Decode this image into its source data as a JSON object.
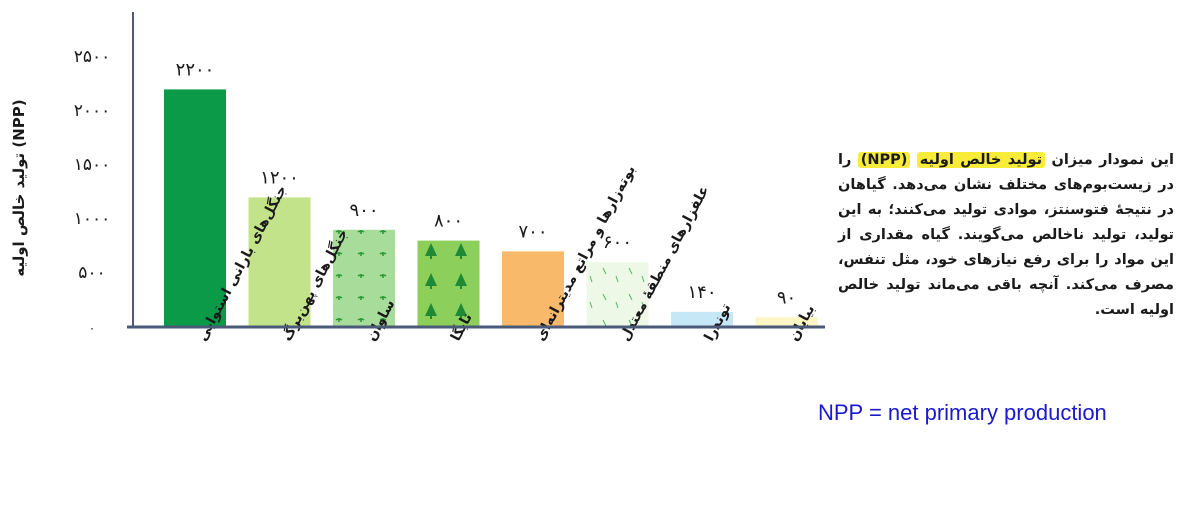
{
  "chart_data": {
    "type": "bar",
    "title": "",
    "ylabel": "تولید خالص اولیه (NPP)",
    "xlabel": "",
    "ylim": [
      0,
      2500
    ],
    "yticks": [
      "۰",
      "۵۰۰",
      "۱۰۰۰",
      "۱۵۰۰",
      "۲۰۰۰",
      "۲۵۰۰"
    ],
    "ytick_values": [
      0,
      500,
      1000,
      1500,
      2000,
      2500
    ],
    "categories": [
      "جنگل‌های بارانی استوایی",
      "جنگل‌های پهن‌برگ",
      "ساوان",
      "تایگا",
      "بوته‌زارها و مراتع مدیترانه‌ای",
      "علفزارهای منطقهٔ معتدل",
      "توندرا",
      "بیابان"
    ],
    "values": [
      2200,
      1200,
      900,
      800,
      700,
      600,
      140,
      90
    ],
    "value_labels": [
      "۲۲۰۰",
      "۱۲۰۰",
      "۹۰۰",
      "۸۰۰",
      "۷۰۰",
      "۶۰۰",
      "۱۴۰",
      "۹۰"
    ],
    "colors": [
      "#0a9a48",
      "#c3e38a",
      "#a8dc9a",
      "#8ccf5a",
      "#f8b96a",
      "#eef8e6",
      "#c6e8f6",
      "#fbf6c4"
    ],
    "grid": false,
    "legend": "none"
  },
  "description": {
    "part1": "این نمودار میزان ",
    "highlight1": "تولید خالص اولیه",
    "part2": " ",
    "highlight2": "(NPP)",
    "part3": " را در زیست‌بوم‌های مختلف نشان می‌دهد. گیاهان در نتیجهٔ فتوسنتز، موادی تولید می‌کنند؛ به این تولید، تولید ناخالص می‌گویند. گیاه مقداری از این مواد را برای رفع نیازهای خود، مثل تنفس، مصرف می‌کند. آنچه باقی می‌ماند تولید خالص اولیه است."
  },
  "note": "NPP = net primary production",
  "colors": {
    "axis": "#4a5a78",
    "text": "#1a1a1a",
    "highlight": "#f8ec3a",
    "note": "#1a1acc",
    "pattern_green": "#2e9a3a"
  }
}
